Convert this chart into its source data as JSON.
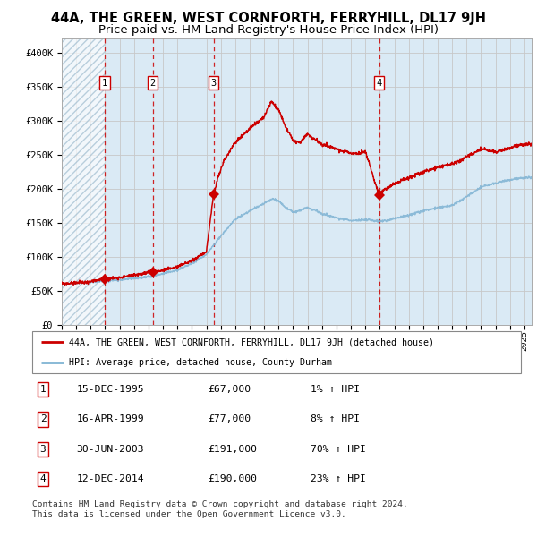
{
  "title": "44A, THE GREEN, WEST CORNFORTH, FERRYHILL, DL17 9JH",
  "subtitle": "Price paid vs. HM Land Registry's House Price Index (HPI)",
  "ylim": [
    0,
    420000
  ],
  "yticks": [
    0,
    50000,
    100000,
    150000,
    200000,
    250000,
    300000,
    350000,
    400000
  ],
  "ytick_labels": [
    "£0",
    "£50K",
    "£100K",
    "£150K",
    "£200K",
    "£250K",
    "£300K",
    "£350K",
    "£400K"
  ],
  "xmin": 1993.0,
  "xmax": 2025.5,
  "transactions": [
    {
      "num": 1,
      "date": 1995.96,
      "price": 67000,
      "label": "15-DEC-1995",
      "price_str": "£67,000",
      "hpi_str": "1% ↑ HPI"
    },
    {
      "num": 2,
      "date": 1999.29,
      "price": 77000,
      "label": "16-APR-1999",
      "price_str": "£77,000",
      "hpi_str": "8% ↑ HPI"
    },
    {
      "num": 3,
      "date": 2003.5,
      "price": 191000,
      "label": "30-JUN-2003",
      "price_str": "£191,000",
      "hpi_str": "70% ↑ HPI"
    },
    {
      "num": 4,
      "date": 2014.95,
      "price": 190000,
      "label": "12-DEC-2014",
      "price_str": "£190,000",
      "hpi_str": "23% ↑ HPI"
    }
  ],
  "line_red_color": "#cc0000",
  "line_blue_color": "#7fb3d3",
  "marker_color": "#cc0000",
  "vline_color": "#cc0000",
  "grid_color": "#c8c8c8",
  "bg_color": "#daeaf5",
  "legend_red_label": "44A, THE GREEN, WEST CORNFORTH, FERRYHILL, DL17 9JH (detached house)",
  "legend_blue_label": "HPI: Average price, detached house, County Durham",
  "footer": "Contains HM Land Registry data © Crown copyright and database right 2024.\nThis data is licensed under the Open Government Licence v3.0.",
  "title_fontsize": 10.5,
  "subtitle_fontsize": 9.5,
  "hpi_anchors": [
    [
      1993.0,
      60000
    ],
    [
      1994.0,
      61000
    ],
    [
      1995.0,
      62000
    ],
    [
      1996.0,
      64000
    ],
    [
      1997.0,
      66000
    ],
    [
      1998.0,
      68000
    ],
    [
      1999.0,
      70000
    ],
    [
      2000.0,
      75000
    ],
    [
      2001.0,
      80000
    ],
    [
      2002.0,
      90000
    ],
    [
      2003.0,
      103000
    ],
    [
      2004.0,
      130000
    ],
    [
      2005.0,
      155000
    ],
    [
      2006.0,
      167000
    ],
    [
      2007.0,
      178000
    ],
    [
      2007.6,
      185000
    ],
    [
      2008.0,
      182000
    ],
    [
      2008.5,
      172000
    ],
    [
      2009.0,
      165000
    ],
    [
      2009.5,
      168000
    ],
    [
      2010.0,
      172000
    ],
    [
      2010.5,
      168000
    ],
    [
      2011.0,
      163000
    ],
    [
      2011.5,
      160000
    ],
    [
      2012.0,
      157000
    ],
    [
      2012.5,
      155000
    ],
    [
      2013.0,
      153000
    ],
    [
      2013.5,
      153000
    ],
    [
      2014.0,
      154000
    ],
    [
      2014.5,
      153000
    ],
    [
      2015.0,
      152000
    ],
    [
      2015.5,
      153000
    ],
    [
      2016.0,
      156000
    ],
    [
      2017.0,
      161000
    ],
    [
      2018.0,
      167000
    ],
    [
      2019.0,
      172000
    ],
    [
      2020.0,
      175000
    ],
    [
      2021.0,
      188000
    ],
    [
      2022.0,
      202000
    ],
    [
      2023.0,
      208000
    ],
    [
      2024.0,
      213000
    ],
    [
      2025.0,
      216000
    ]
  ],
  "red_anchors": [
    [
      1993.0,
      60000
    ],
    [
      1994.0,
      61500
    ],
    [
      1995.0,
      63000
    ],
    [
      1995.96,
      67000
    ],
    [
      1996.5,
      68000
    ],
    [
      1997.0,
      69500
    ],
    [
      1998.0,
      73000
    ],
    [
      1999.29,
      77000
    ],
    [
      2000.0,
      80000
    ],
    [
      2001.0,
      85000
    ],
    [
      2002.0,
      94000
    ],
    [
      2003.0,
      107000
    ],
    [
      2003.5,
      191000
    ],
    [
      2003.8,
      215000
    ],
    [
      2004.2,
      240000
    ],
    [
      2005.0,
      268000
    ],
    [
      2006.0,
      288000
    ],
    [
      2007.0,
      305000
    ],
    [
      2007.5,
      328000
    ],
    [
      2008.0,
      316000
    ],
    [
      2008.5,
      290000
    ],
    [
      2009.0,
      270000
    ],
    [
      2009.5,
      268000
    ],
    [
      2010.0,
      280000
    ],
    [
      2010.5,
      272000
    ],
    [
      2011.0,
      265000
    ],
    [
      2011.5,
      262000
    ],
    [
      2012.0,
      258000
    ],
    [
      2012.5,
      255000
    ],
    [
      2013.0,
      252000
    ],
    [
      2013.5,
      251000
    ],
    [
      2014.0,
      254000
    ],
    [
      2014.95,
      190000
    ],
    [
      2015.0,
      193000
    ],
    [
      2015.3,
      198000
    ],
    [
      2015.6,
      202000
    ],
    [
      2016.0,
      207000
    ],
    [
      2016.5,
      212000
    ],
    [
      2017.0,
      216000
    ],
    [
      2017.5,
      220000
    ],
    [
      2018.0,
      224000
    ],
    [
      2018.5,
      228000
    ],
    [
      2019.0,
      231000
    ],
    [
      2019.5,
      234000
    ],
    [
      2020.0,
      236000
    ],
    [
      2020.5,
      240000
    ],
    [
      2021.0,
      247000
    ],
    [
      2021.5,
      252000
    ],
    [
      2022.0,
      258000
    ],
    [
      2022.5,
      256000
    ],
    [
      2023.0,
      254000
    ],
    [
      2023.5,
      256000
    ],
    [
      2024.0,
      260000
    ],
    [
      2024.5,
      263000
    ],
    [
      2025.0,
      265000
    ]
  ]
}
